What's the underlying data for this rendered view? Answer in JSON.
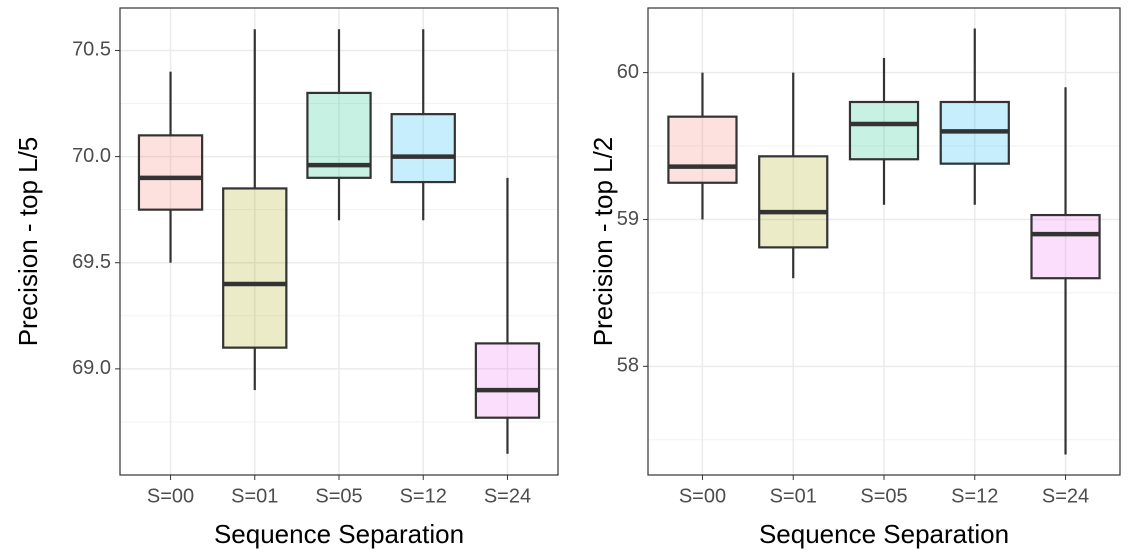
{
  "chart_data": [
    {
      "type": "box",
      "y_label": "Precision - top L/5",
      "x_label": "Sequence Separation",
      "categories": [
        "S=00",
        "S=01",
        "S=05",
        "S=12",
        "S=24"
      ],
      "colors": [
        "#F8766D",
        "#A3A500",
        "#00BF7D",
        "#00B0F6",
        "#E76BF3"
      ],
      "min": [
        69.5,
        68.9,
        69.7,
        69.7,
        68.6
      ],
      "q1": [
        69.75,
        69.1,
        69.9,
        69.88,
        68.77
      ],
      "median": [
        69.9,
        69.4,
        69.96,
        70.0,
        68.9
      ],
      "q3": [
        70.1,
        69.85,
        70.3,
        70.2,
        69.12
      ],
      "max": [
        70.4,
        70.6,
        70.6,
        70.6,
        69.9
      ],
      "ylim": [
        68.5,
        70.7
      ],
      "yticks": [
        {
          "value": 69,
          "label": "69.0"
        },
        69.5,
        {
          "value": 70,
          "label": "70.0"
        },
        70.5
      ],
      "grid": true
    },
    {
      "type": "box",
      "y_label": "Precision - top L/2",
      "x_label": "Sequence Separation",
      "categories": [
        "S=00",
        "S=01",
        "S=05",
        "S=12",
        "S=24"
      ],
      "colors": [
        "#F8766D",
        "#A3A500",
        "#00BF7D",
        "#00B0F6",
        "#E76BF3"
      ],
      "min": [
        59.0,
        58.6,
        59.1,
        59.1,
        57.4
      ],
      "q1": [
        59.25,
        58.81,
        59.41,
        59.38,
        58.6
      ],
      "median": [
        59.36,
        59.05,
        59.65,
        59.6,
        58.9
      ],
      "q3": [
        59.7,
        59.43,
        59.8,
        59.8,
        59.03
      ],
      "max": [
        60.0,
        60.0,
        60.1,
        60.3,
        59.9
      ],
      "ylim": [
        57.26,
        60.44
      ],
      "yticks": [
        58,
        59,
        60
      ],
      "grid": true
    }
  ]
}
